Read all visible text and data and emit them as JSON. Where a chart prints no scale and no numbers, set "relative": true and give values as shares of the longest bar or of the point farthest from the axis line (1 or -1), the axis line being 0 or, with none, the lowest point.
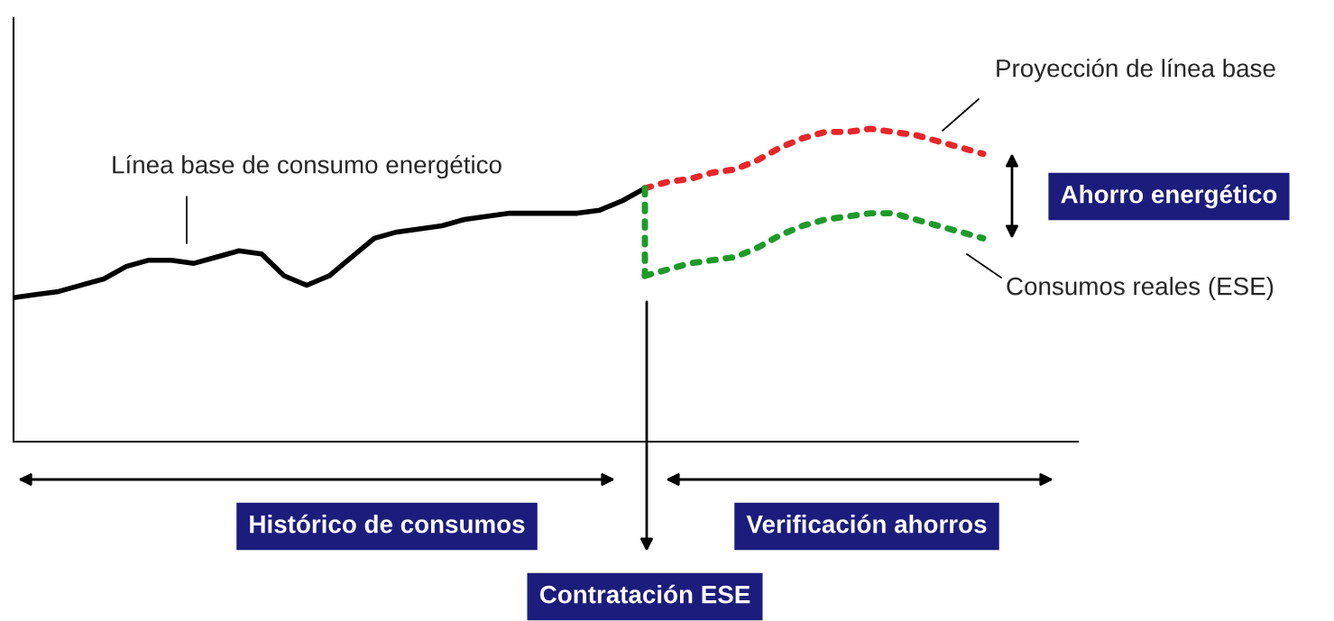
{
  "chart_data": {
    "type": "line",
    "relative": true,
    "categories": [
      null,
      null,
      null,
      null,
      null,
      null,
      null,
      null,
      null,
      null,
      null,
      null,
      null,
      null,
      null,
      null,
      null,
      null,
      null,
      null,
      null,
      null,
      null,
      null,
      null,
      null,
      null,
      null,
      null,
      null,
      null,
      null,
      null,
      null,
      null,
      null,
      null,
      null,
      null,
      null,
      null,
      null,
      null,
      null,
      null,
      null,
      null,
      null
    ],
    "series": [
      {
        "color": "#000000",
        "line_style": "solid",
        "values": [
          0.46,
          0.47,
          0.48,
          0.5,
          0.52,
          0.56,
          0.58,
          0.58,
          0.57,
          0.59,
          0.61,
          0.6,
          0.53,
          0.5,
          0.53,
          0.59,
          0.65,
          0.67,
          0.68,
          0.69,
          0.71,
          0.72,
          0.73,
          0.73,
          0.73,
          0.73,
          0.74,
          0.77,
          0.81,
          null,
          null,
          null,
          null,
          null,
          null,
          null,
          null,
          null,
          null,
          null,
          null,
          null,
          null,
          null,
          null,
          null,
          null,
          null
        ]
      },
      {
        "color": "#e8262a",
        "line_style": "dotted",
        "values": [
          null,
          null,
          null,
          null,
          null,
          null,
          null,
          null,
          null,
          null,
          null,
          null,
          null,
          null,
          null,
          null,
          null,
          null,
          null,
          null,
          null,
          null,
          null,
          null,
          null,
          null,
          null,
          null,
          0.81,
          0.83,
          0.84,
          0.86,
          0.87,
          0.9,
          0.94,
          0.97,
          0.99,
          0.99,
          1,
          0.99,
          0.98,
          0.96,
          0.94,
          0.92,
          null,
          null,
          null,
          null
        ]
      },
      {
        "color": "#1e9a2a",
        "line_style": "dotted",
        "values": [
          null,
          null,
          null,
          null,
          null,
          null,
          null,
          null,
          null,
          null,
          null,
          null,
          null,
          null,
          null,
          null,
          null,
          null,
          null,
          null,
          null,
          null,
          null,
          null,
          null,
          null,
          null,
          null,
          0.53,
          0.55,
          0.57,
          0.58,
          0.59,
          0.62,
          0.66,
          0.69,
          0.71,
          0.72,
          0.73,
          0.73,
          0.71,
          0.69,
          0.67,
          0.65,
          null,
          null,
          null,
          null
        ]
      }
    ],
    "annotations": [
      "Línea base de consumo energético",
      "Proyección de línea base",
      "Consumos reales (ESE)",
      "Ahorro energético",
      "Histórico de consumos",
      "Verificación ahorros",
      "Contratación ESE"
    ]
  }
}
